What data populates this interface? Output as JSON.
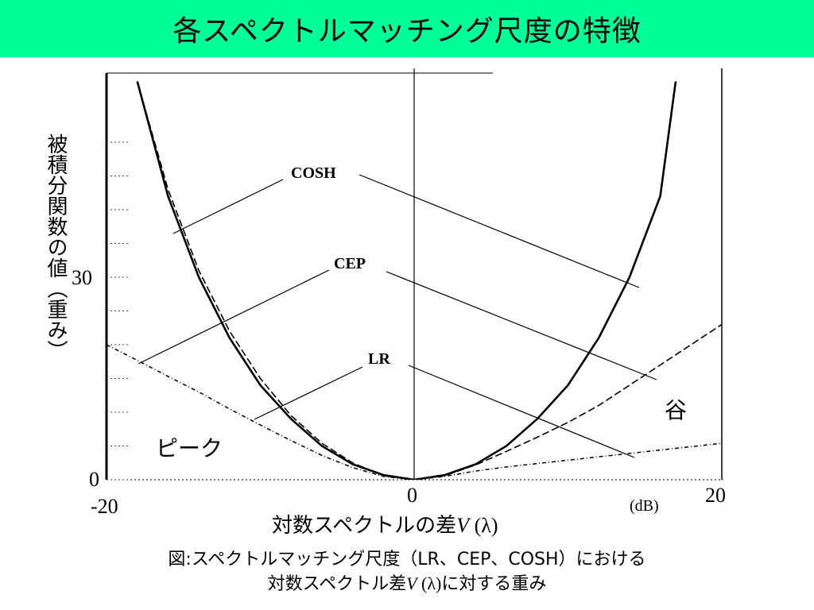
{
  "title": "各スペクトルマッチング尺度の特徴",
  "chart_data": {
    "type": "line",
    "xlabel_main": "対数スペクトルの差",
    "xlabel_symbol": "V",
    "xlabel_arg": " (λ)",
    "x_unit": "(dB)",
    "ylabel": "被積分関数の値（重み）",
    "xlim": [
      -20,
      20
    ],
    "ylim": [
      0,
      60
    ],
    "x_ticks": [
      "-20",
      "0",
      "20"
    ],
    "y_ticks": [
      "0",
      "30"
    ],
    "series": [
      {
        "name": "COSH",
        "x": [
          -18,
          -16,
          -14,
          -12,
          -10,
          -8,
          -6,
          -4,
          -2,
          0,
          2,
          4,
          6,
          8,
          10,
          12,
          14,
          16,
          17
        ],
        "y": [
          59,
          42,
          30,
          21,
          14,
          9,
          5,
          2.3,
          0.7,
          0,
          0.7,
          2.3,
          5,
          9,
          14,
          21,
          30,
          42,
          59
        ]
      },
      {
        "name": "CEP",
        "x": [
          -18,
          -16,
          -14,
          -12,
          -10,
          -8,
          -6,
          -4,
          -2,
          0,
          2,
          4,
          6,
          8,
          10,
          12,
          14,
          16,
          18,
          20
        ],
        "y": [
          59,
          43,
          31,
          22,
          15,
          9.5,
          5.4,
          2.5,
          0.6,
          0,
          0.6,
          2.2,
          4.2,
          6.3,
          8.5,
          11,
          14,
          17,
          20,
          23
        ]
      },
      {
        "name": "LR",
        "x": [
          -20,
          -18,
          -16,
          -14,
          -12,
          -10,
          -8,
          -6,
          -4,
          -2,
          0,
          2,
          4,
          6,
          8,
          10,
          12,
          14,
          16,
          18,
          20
        ],
        "y": [
          20,
          17.7,
          15.3,
          13,
          10.5,
          8.1,
          5.8,
          3.6,
          1.8,
          0.5,
          0,
          0.5,
          1.3,
          1.9,
          2.4,
          2.9,
          3.4,
          3.9,
          4.4,
          4.9,
          5.4
        ]
      }
    ],
    "annotations": [
      {
        "text": "ピーク"
      },
      {
        "text": "谷"
      }
    ]
  },
  "caption": {
    "line1": "図:スペクトルマッチング尺度（LR、CEP、COSH）における",
    "line2_a": "対数スペクトル差",
    "line2_sym": "V",
    "line2_b": " (λ)に対する重み"
  }
}
